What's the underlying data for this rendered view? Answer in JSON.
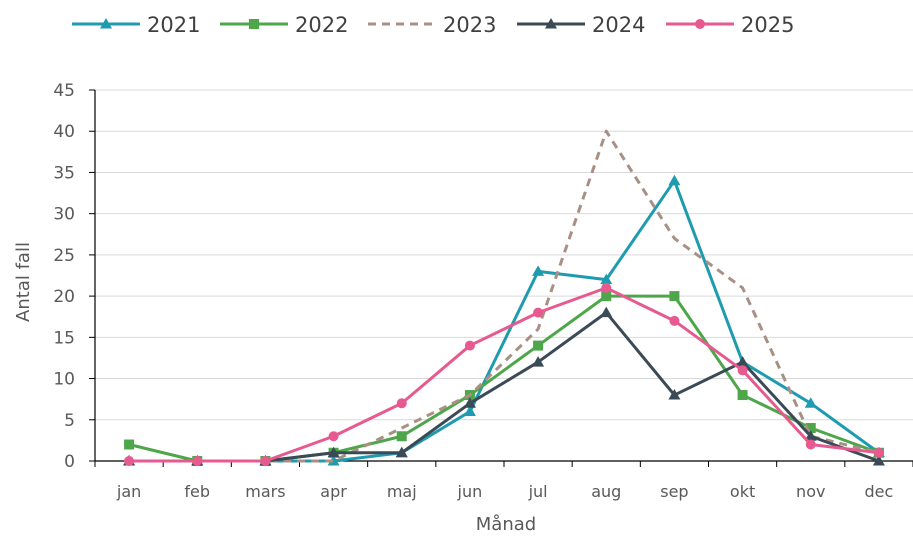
{
  "chart_data": {
    "type": "line",
    "categories": [
      "jan",
      "feb",
      "mars",
      "apr",
      "maj",
      "jun",
      "jul",
      "aug",
      "sep",
      "okt",
      "nov",
      "dec"
    ],
    "series": [
      {
        "name": "2021",
        "color": "#1f9bb0",
        "marker": "triangle",
        "dash": false,
        "values": [
          0,
          0,
          0,
          0,
          1,
          6,
          23,
          22,
          34,
          12,
          7,
          1
        ]
      },
      {
        "name": "2022",
        "color": "#4ea64a",
        "marker": "square",
        "dash": false,
        "values": [
          2,
          0,
          0,
          1,
          3,
          8,
          14,
          20,
          20,
          8,
          4,
          1
        ]
      },
      {
        "name": "2023",
        "color": "#a89085",
        "marker": "none",
        "dash": true,
        "values": [
          0,
          0,
          0,
          0,
          4,
          8,
          16,
          40,
          27,
          21,
          3,
          1
        ]
      },
      {
        "name": "2024",
        "color": "#3a4a56",
        "marker": "triangle",
        "dash": false,
        "values": [
          0,
          0,
          0,
          1,
          1,
          7,
          12,
          18,
          8,
          12,
          3,
          0
        ]
      },
      {
        "name": "2025",
        "color": "#e75a8f",
        "marker": "circle",
        "dash": false,
        "values": [
          0,
          0,
          0,
          3,
          7,
          14,
          18,
          21,
          17,
          11,
          2,
          1
        ]
      }
    ],
    "xlabel": "Månad",
    "ylabel": "Antal fall",
    "ylim": [
      0,
      45
    ],
    "yticks": [
      0,
      5,
      10,
      15,
      20,
      25,
      30,
      35,
      40,
      45
    ],
    "grid": "horizontal",
    "legend_position": "top"
  }
}
